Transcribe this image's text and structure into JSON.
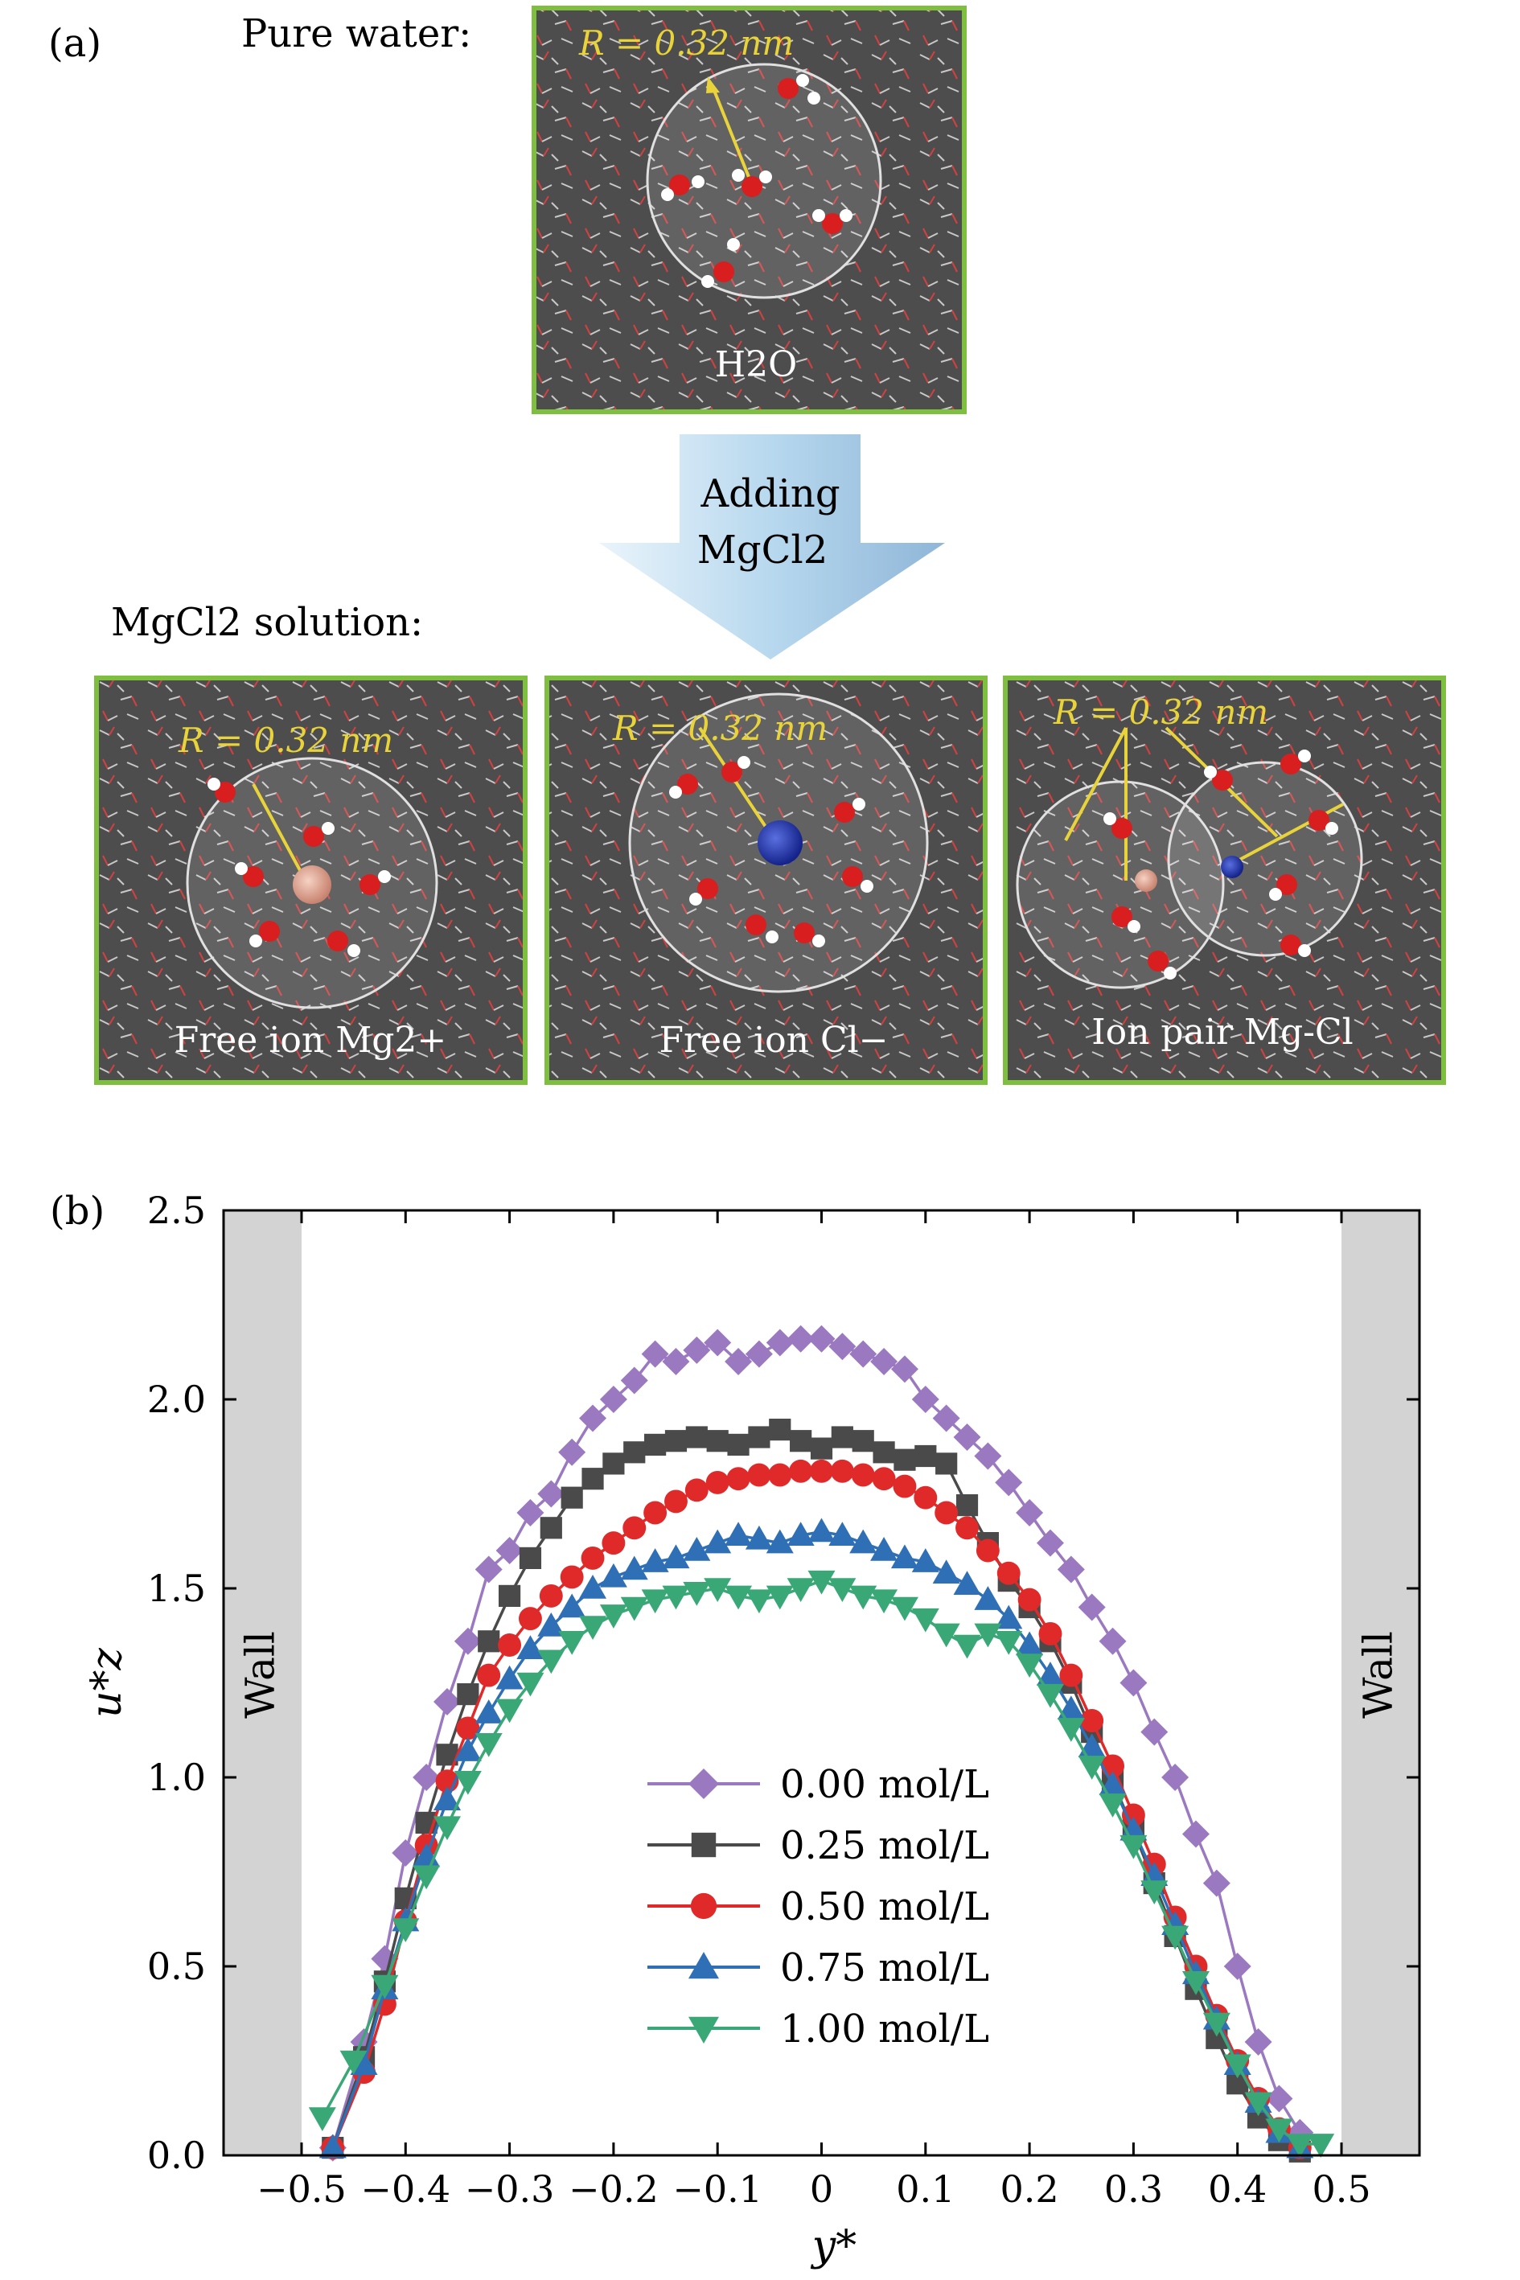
{
  "figure": {
    "panel_a_label": "(a)",
    "panel_b_label": "(b)"
  },
  "panel_a": {
    "pure_water_label": "Pure water:",
    "top_box": {
      "radius_label": "R = 0.32 nm",
      "molecule_label": "H2O"
    },
    "arrow_text_line1": "Adding",
    "arrow_text_line2": "MgCl2",
    "solution_label": "MgCl2 solution:",
    "boxes": [
      {
        "radius_label": "R = 0.32 nm",
        "caption": "Free ion Mg2+"
      },
      {
        "radius_label": "R = 0.32 nm",
        "caption": "Free ion Cl−"
      },
      {
        "radius_label": "R = 0.32 nm",
        "caption": "Ion pair Mg-Cl"
      }
    ],
    "colors": {
      "box_bg": "#4d4d4d",
      "box_border": "#7fbf3f",
      "label_yellow": "#e8d33a",
      "arrow": "#a9cfe6"
    }
  },
  "chart_data": {
    "type": "line",
    "xlabel": "y*",
    "ylabel": "u*z",
    "xlim": [
      -0.575,
      0.575
    ],
    "ylim": [
      0.0,
      2.5
    ],
    "xticks": [
      -0.5,
      -0.4,
      -0.3,
      -0.2,
      -0.1,
      0.0,
      0.1,
      0.2,
      0.3,
      0.4,
      0.5
    ],
    "xtick_labels": [
      "−0.5",
      "−0.4",
      "−0.3",
      "−0.2",
      "−0.1",
      "0",
      "0.1",
      "0.2",
      "0.3",
      "0.4",
      "0.5"
    ],
    "yticks": [
      0.0,
      0.5,
      1.0,
      1.5,
      2.0,
      2.5
    ],
    "ytick_labels": [
      "0.0",
      "0.5",
      "1.0",
      "1.5",
      "2.0",
      "2.5"
    ],
    "wall_label": "Wall",
    "wall_regions": [
      [
        -0.575,
        -0.5
      ],
      [
        0.5,
        0.575
      ]
    ],
    "legend_position": "center",
    "series": [
      {
        "name": "0.00 mol/L",
        "color": "#9b79c0",
        "marker": "diamond",
        "x": [
          -0.47,
          -0.44,
          -0.42,
          -0.4,
          -0.38,
          -0.36,
          -0.34,
          -0.32,
          -0.3,
          -0.28,
          -0.26,
          -0.24,
          -0.22,
          -0.2,
          -0.18,
          -0.16,
          -0.14,
          -0.12,
          -0.1,
          -0.08,
          -0.06,
          -0.04,
          -0.02,
          0.0,
          0.02,
          0.04,
          0.06,
          0.08,
          0.1,
          0.12,
          0.14,
          0.16,
          0.18,
          0.2,
          0.22,
          0.24,
          0.26,
          0.28,
          0.3,
          0.32,
          0.34,
          0.36,
          0.38,
          0.4,
          0.42,
          0.44,
          0.46
        ],
        "y": [
          0.02,
          0.3,
          0.52,
          0.8,
          1.0,
          1.2,
          1.36,
          1.55,
          1.6,
          1.7,
          1.75,
          1.86,
          1.95,
          2.0,
          2.05,
          2.12,
          2.1,
          2.13,
          2.15,
          2.1,
          2.12,
          2.15,
          2.16,
          2.16,
          2.14,
          2.12,
          2.1,
          2.08,
          2.0,
          1.95,
          1.9,
          1.85,
          1.78,
          1.7,
          1.62,
          1.55,
          1.45,
          1.36,
          1.25,
          1.12,
          1.0,
          0.85,
          0.72,
          0.5,
          0.3,
          0.15,
          0.06
        ]
      },
      {
        "name": "0.25 mol/L",
        "color": "#4a4a4a",
        "marker": "square",
        "x": [
          -0.47,
          -0.44,
          -0.42,
          -0.4,
          -0.38,
          -0.36,
          -0.34,
          -0.32,
          -0.3,
          -0.28,
          -0.26,
          -0.24,
          -0.22,
          -0.2,
          -0.18,
          -0.16,
          -0.14,
          -0.12,
          -0.1,
          -0.08,
          -0.06,
          -0.04,
          -0.02,
          0.0,
          0.02,
          0.04,
          0.06,
          0.08,
          0.1,
          0.12,
          0.14,
          0.16,
          0.18,
          0.2,
          0.22,
          0.24,
          0.26,
          0.28,
          0.3,
          0.32,
          0.34,
          0.36,
          0.38,
          0.4,
          0.42,
          0.44,
          0.46
        ],
        "y": [
          0.02,
          0.26,
          0.46,
          0.68,
          0.88,
          1.06,
          1.22,
          1.36,
          1.48,
          1.58,
          1.66,
          1.74,
          1.79,
          1.83,
          1.86,
          1.88,
          1.89,
          1.9,
          1.89,
          1.88,
          1.9,
          1.92,
          1.89,
          1.87,
          1.9,
          1.89,
          1.86,
          1.84,
          1.85,
          1.83,
          1.72,
          1.62,
          1.52,
          1.45,
          1.36,
          1.25,
          1.12,
          0.99,
          0.86,
          0.72,
          0.58,
          0.44,
          0.31,
          0.19,
          0.1,
          0.04,
          0.01
        ]
      },
      {
        "name": "0.50 mol/L",
        "color": "#e02a2a",
        "marker": "circle",
        "x": [
          -0.47,
          -0.44,
          -0.42,
          -0.4,
          -0.38,
          -0.36,
          -0.34,
          -0.32,
          -0.3,
          -0.28,
          -0.26,
          -0.24,
          -0.22,
          -0.2,
          -0.18,
          -0.16,
          -0.14,
          -0.12,
          -0.1,
          -0.08,
          -0.06,
          -0.04,
          -0.02,
          0.0,
          0.02,
          0.04,
          0.06,
          0.08,
          0.1,
          0.12,
          0.14,
          0.16,
          0.18,
          0.2,
          0.22,
          0.24,
          0.26,
          0.28,
          0.3,
          0.32,
          0.34,
          0.36,
          0.38,
          0.4,
          0.42,
          0.44,
          0.46
        ],
        "y": [
          0.02,
          0.22,
          0.4,
          0.62,
          0.82,
          0.99,
          1.13,
          1.27,
          1.35,
          1.42,
          1.48,
          1.53,
          1.58,
          1.62,
          1.66,
          1.7,
          1.73,
          1.76,
          1.78,
          1.79,
          1.8,
          1.8,
          1.81,
          1.81,
          1.81,
          1.8,
          1.79,
          1.77,
          1.74,
          1.7,
          1.66,
          1.6,
          1.54,
          1.47,
          1.38,
          1.27,
          1.15,
          1.03,
          0.9,
          0.77,
          0.63,
          0.5,
          0.37,
          0.25,
          0.15,
          0.07,
          0.02
        ]
      },
      {
        "name": "0.75 mol/L",
        "color": "#2f6fb5",
        "marker": "triangle-up",
        "x": [
          -0.47,
          -0.44,
          -0.42,
          -0.4,
          -0.38,
          -0.36,
          -0.34,
          -0.32,
          -0.3,
          -0.28,
          -0.26,
          -0.24,
          -0.22,
          -0.2,
          -0.18,
          -0.16,
          -0.14,
          -0.12,
          -0.1,
          -0.08,
          -0.06,
          -0.04,
          -0.02,
          0.0,
          0.02,
          0.04,
          0.06,
          0.08,
          0.1,
          0.12,
          0.14,
          0.16,
          0.18,
          0.2,
          0.22,
          0.24,
          0.26,
          0.28,
          0.3,
          0.32,
          0.34,
          0.36,
          0.38,
          0.4,
          0.42,
          0.44,
          0.46
        ],
        "y": [
          0.02,
          0.24,
          0.44,
          0.62,
          0.79,
          0.94,
          1.07,
          1.17,
          1.26,
          1.34,
          1.4,
          1.45,
          1.5,
          1.53,
          1.55,
          1.57,
          1.58,
          1.6,
          1.62,
          1.64,
          1.63,
          1.62,
          1.64,
          1.65,
          1.64,
          1.62,
          1.6,
          1.58,
          1.57,
          1.54,
          1.51,
          1.47,
          1.42,
          1.35,
          1.27,
          1.18,
          1.08,
          0.98,
          0.86,
          0.74,
          0.61,
          0.48,
          0.36,
          0.24,
          0.14,
          0.06,
          0.02
        ]
      },
      {
        "name": "1.00 mol/L",
        "color": "#3aa876",
        "marker": "triangle-down",
        "x": [
          -0.48,
          -0.45,
          -0.42,
          -0.4,
          -0.38,
          -0.36,
          -0.34,
          -0.32,
          -0.3,
          -0.28,
          -0.26,
          -0.24,
          -0.22,
          -0.2,
          -0.18,
          -0.16,
          -0.14,
          -0.12,
          -0.1,
          -0.08,
          -0.06,
          -0.04,
          -0.02,
          0.0,
          0.02,
          0.04,
          0.06,
          0.08,
          0.1,
          0.12,
          0.14,
          0.16,
          0.18,
          0.2,
          0.22,
          0.24,
          0.26,
          0.28,
          0.3,
          0.32,
          0.34,
          0.36,
          0.38,
          0.4,
          0.42,
          0.44,
          0.46,
          0.48
        ],
        "y": [
          0.1,
          0.25,
          0.45,
          0.6,
          0.74,
          0.87,
          0.99,
          1.09,
          1.18,
          1.25,
          1.31,
          1.36,
          1.4,
          1.43,
          1.45,
          1.47,
          1.48,
          1.49,
          1.5,
          1.48,
          1.47,
          1.48,
          1.5,
          1.52,
          1.5,
          1.48,
          1.47,
          1.45,
          1.42,
          1.38,
          1.35,
          1.38,
          1.36,
          1.3,
          1.22,
          1.13,
          1.03,
          0.93,
          0.82,
          0.7,
          0.58,
          0.46,
          0.35,
          0.24,
          0.14,
          0.07,
          0.03,
          0.03
        ]
      }
    ]
  }
}
